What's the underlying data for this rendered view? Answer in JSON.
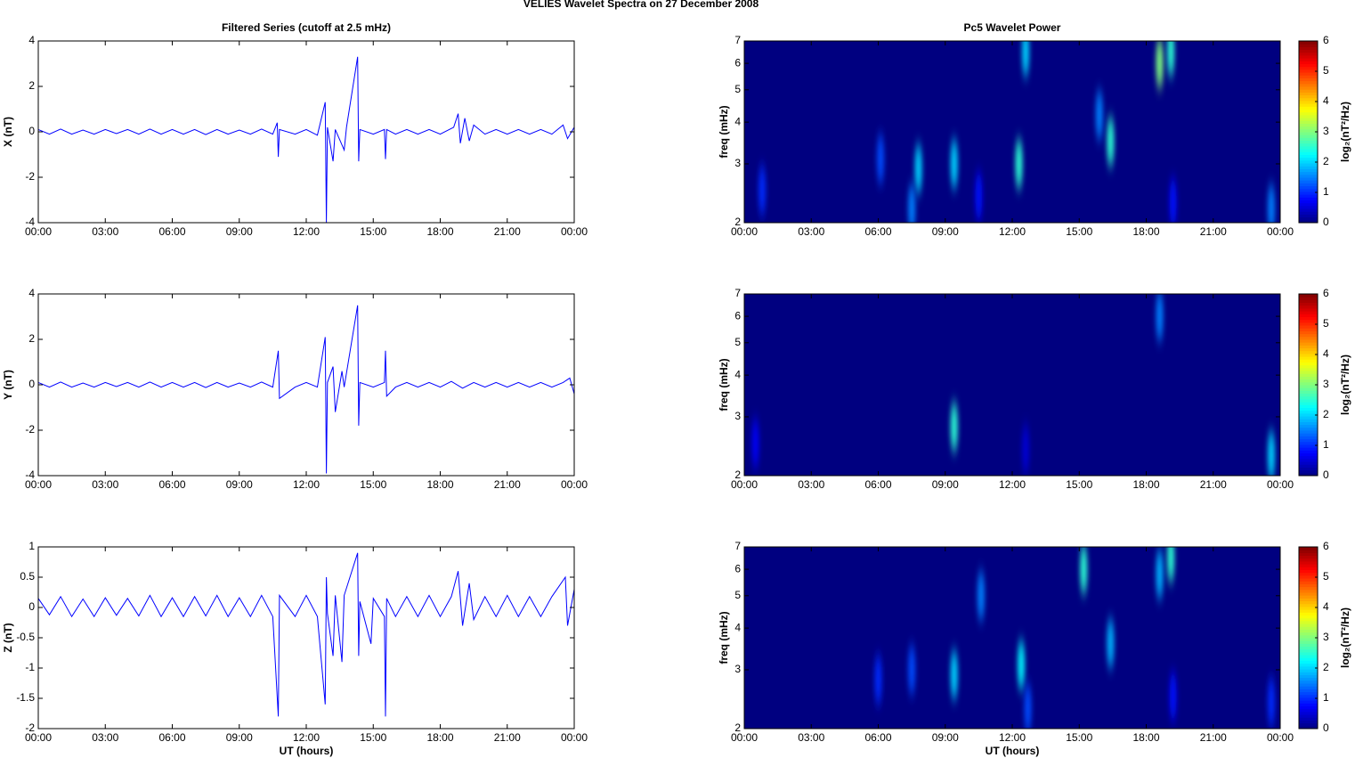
{
  "title": "VELIES Wavelet Spectra on 27 December  2008",
  "chart_data": [
    {
      "type": "line",
      "title": "Filtered Series (cutoff at 2.5 mHz)",
      "ylabel": "X (nT)",
      "x": [
        0,
        0.5,
        1,
        1.5,
        2,
        2.5,
        3,
        3.5,
        4,
        4.5,
        5,
        5.5,
        6,
        6.5,
        7,
        7.5,
        8,
        8.5,
        9,
        9.5,
        10,
        10.5,
        10.7,
        10.75,
        10.8,
        11.5,
        12,
        12.5,
        12.85,
        12.9,
        12.95,
        13.2,
        13.3,
        13.7,
        13.8,
        14.3,
        14.35,
        14.4,
        15,
        15.5,
        15.55,
        15.6,
        16,
        16.5,
        17,
        17.5,
        18,
        18.6,
        18.8,
        18.9,
        19.1,
        19.3,
        19.5,
        20,
        20.5,
        21,
        21.5,
        22,
        22.5,
        23,
        23.5,
        23.7,
        24
      ],
      "series": [
        {
          "color": "#0000ff",
          "values": [
            0.1,
            -0.1,
            0.12,
            -0.1,
            0.08,
            -0.1,
            0.1,
            -0.08,
            0.1,
            -0.1,
            0.12,
            -0.1,
            0.1,
            -0.1,
            0.1,
            -0.12,
            0.1,
            -0.1,
            0.08,
            -0.1,
            0.12,
            -0.1,
            0.4,
            -1.1,
            0.1,
            -0.1,
            0.1,
            -0.15,
            1.3,
            -4,
            0.2,
            -1.3,
            0.1,
            -0.8,
            0.2,
            3.3,
            -1.3,
            0.1,
            -0.1,
            0.1,
            -1.2,
            0.1,
            -0.1,
            0.1,
            -0.1,
            0.1,
            -0.1,
            0.2,
            0.8,
            -0.5,
            0.6,
            -0.4,
            0.3,
            -0.1,
            0.1,
            -0.1,
            0.1,
            -0.1,
            0.1,
            -0.1,
            0.3,
            -0.3,
            0.2
          ]
        }
      ],
      "xlim": [
        0,
        24
      ],
      "xticks": [
        {
          "value": 0,
          "label": "00:00"
        },
        {
          "value": 3,
          "label": "03:00"
        },
        {
          "value": 6,
          "label": "06:00"
        },
        {
          "value": 9,
          "label": "09:00"
        },
        {
          "value": 12,
          "label": "12:00"
        },
        {
          "value": 15,
          "label": "15:00"
        },
        {
          "value": 18,
          "label": "18:00"
        },
        {
          "value": 21,
          "label": "21:00"
        },
        {
          "value": 24,
          "label": "00:00"
        }
      ],
      "ylim": [
        -4,
        4
      ],
      "yticks": [
        -4,
        -2,
        0,
        2,
        4
      ]
    },
    {
      "type": "heatmap",
      "title": "Pc5 Wavelet Power",
      "ylabel": "freq (mHz)",
      "log_y": true,
      "colormap": "jet",
      "x": [
        0.8,
        6.1,
        7.8,
        7.5,
        9.4,
        10.5,
        12.3,
        12.6,
        16.4,
        15.9,
        18.6,
        19.1,
        23.6,
        19.2
      ],
      "y": [
        2.5,
        3.1,
        2.9,
        2.2,
        3,
        2.4,
        3,
        6.5,
        3.5,
        4.2,
        6,
        6.5,
        2.2,
        2.3
      ],
      "values": [
        1,
        1.2,
        2,
        1.5,
        2,
        0.8,
        2.5,
        2,
        2.5,
        1.5,
        3,
        2.5,
        1.5,
        0.8
      ],
      "xlim": [
        0,
        24
      ],
      "xticks": [
        {
          "value": 0,
          "label": "00:00"
        },
        {
          "value": 3,
          "label": "03:00"
        },
        {
          "value": 6,
          "label": "06:00"
        },
        {
          "value": 9,
          "label": "09:00"
        },
        {
          "value": 12,
          "label": "12:00"
        },
        {
          "value": 15,
          "label": "15:00"
        },
        {
          "value": 18,
          "label": "18:00"
        },
        {
          "value": 21,
          "label": "21:00"
        },
        {
          "value": 24,
          "label": "00:00"
        }
      ],
      "ylim": [
        2,
        7
      ],
      "yticks": [
        2,
        3,
        4,
        5,
        6,
        7
      ],
      "clim": [
        0,
        6
      ],
      "cticks": [
        0,
        1,
        2,
        3,
        4,
        5,
        6
      ],
      "clabel": "log₂(nT²/Hz)"
    },
    {
      "type": "line",
      "ylabel": "Y (nT)",
      "x": [
        0,
        0.5,
        1,
        1.5,
        2,
        2.5,
        3,
        3.5,
        4,
        4.5,
        5,
        5.5,
        6,
        6.5,
        7,
        7.5,
        8,
        8.5,
        9,
        9.5,
        10,
        10.5,
        10.75,
        10.8,
        11.5,
        12,
        12.5,
        12.85,
        12.9,
        12.95,
        13.2,
        13.3,
        13.6,
        13.7,
        14.3,
        14.35,
        14.4,
        15,
        15.5,
        15.55,
        15.6,
        16,
        16.5,
        17,
        17.5,
        18,
        18.5,
        19,
        19.5,
        20,
        20.5,
        21,
        21.5,
        22,
        22.5,
        23,
        23.5,
        23.8,
        24
      ],
      "series": [
        {
          "color": "#0000ff",
          "values": [
            0.1,
            -0.1,
            0.12,
            -0.1,
            0.08,
            -0.1,
            0.1,
            -0.08,
            0.1,
            -0.1,
            0.12,
            -0.1,
            0.1,
            -0.1,
            0.1,
            -0.12,
            0.1,
            -0.1,
            0.08,
            -0.1,
            0.12,
            -0.1,
            1.5,
            -0.6,
            -0.1,
            0.1,
            -0.1,
            2.1,
            -3.9,
            0.1,
            0.8,
            -1.2,
            0.6,
            -0.1,
            3.5,
            -1.8,
            0.1,
            -0.1,
            0.1,
            1.5,
            -0.5,
            -0.1,
            0.1,
            -0.1,
            0.1,
            -0.1,
            0.15,
            -0.15,
            0.1,
            -0.1,
            0.1,
            -0.1,
            0.1,
            -0.1,
            0.1,
            -0.1,
            0.1,
            0.3,
            -0.4
          ]
        }
      ],
      "xlim": [
        0,
        24
      ],
      "xticks": [
        {
          "value": 0,
          "label": "00:00"
        },
        {
          "value": 3,
          "label": "03:00"
        },
        {
          "value": 6,
          "label": "06:00"
        },
        {
          "value": 9,
          "label": "09:00"
        },
        {
          "value": 12,
          "label": "12:00"
        },
        {
          "value": 15,
          "label": "15:00"
        },
        {
          "value": 18,
          "label": "18:00"
        },
        {
          "value": 21,
          "label": "21:00"
        },
        {
          "value": 24,
          "label": "00:00"
        }
      ],
      "ylim": [
        -4,
        4
      ],
      "yticks": [
        -4,
        -2,
        0,
        2,
        4
      ]
    },
    {
      "type": "heatmap",
      "ylabel": "freq (mHz)",
      "log_y": true,
      "colormap": "jet",
      "x": [
        0.5,
        9.4,
        18.6,
        23.6,
        12.6
      ],
      "y": [
        2.5,
        2.8,
        6,
        2.3,
        2.4
      ],
      "values": [
        0.7,
        2.5,
        1.5,
        2,
        0.5
      ],
      "xlim": [
        0,
        24
      ],
      "xticks": [
        {
          "value": 0,
          "label": "00:00"
        },
        {
          "value": 3,
          "label": "03:00"
        },
        {
          "value": 6,
          "label": "06:00"
        },
        {
          "value": 9,
          "label": "09:00"
        },
        {
          "value": 12,
          "label": "12:00"
        },
        {
          "value": 15,
          "label": "15:00"
        },
        {
          "value": 18,
          "label": "18:00"
        },
        {
          "value": 21,
          "label": "21:00"
        },
        {
          "value": 24,
          "label": "00:00"
        }
      ],
      "ylim": [
        2,
        7
      ],
      "yticks": [
        2,
        3,
        4,
        5,
        6,
        7
      ],
      "clim": [
        0,
        6
      ],
      "cticks": [
        0,
        1,
        2,
        3,
        4,
        5,
        6
      ],
      "clabel": "log₂(nT²/Hz)"
    },
    {
      "type": "line",
      "ylabel": "Z (nT)",
      "xlabel": "UT (hours)",
      "x": [
        0,
        0.5,
        1,
        1.5,
        2,
        2.5,
        3,
        3.5,
        4,
        4.5,
        5,
        5.5,
        6,
        6.5,
        7,
        7.5,
        8,
        8.5,
        9,
        9.5,
        10,
        10.5,
        10.75,
        10.8,
        11.5,
        12,
        12.5,
        12.85,
        12.9,
        12.95,
        13.2,
        13.3,
        13.6,
        13.7,
        14.3,
        14.35,
        14.4,
        14.9,
        15,
        15.5,
        15.55,
        15.6,
        16,
        16.5,
        17,
        17.5,
        18,
        18.5,
        18.8,
        19,
        19.3,
        19.5,
        20,
        20.5,
        21,
        21.5,
        22,
        22.5,
        23,
        23.6,
        23.7,
        24
      ],
      "series": [
        {
          "color": "#0000ff",
          "values": [
            0.15,
            -0.12,
            0.18,
            -0.15,
            0.14,
            -0.15,
            0.16,
            -0.13,
            0.15,
            -0.14,
            0.2,
            -0.15,
            0.16,
            -0.15,
            0.18,
            -0.14,
            0.2,
            -0.15,
            0.16,
            -0.15,
            0.2,
            -0.15,
            -1.8,
            0.2,
            -0.15,
            0.2,
            -0.15,
            -1.6,
            0.5,
            -0.1,
            -0.8,
            0.2,
            -0.9,
            0.2,
            0.9,
            -0.8,
            0.1,
            -0.6,
            0.15,
            -0.15,
            -1.8,
            0.15,
            -0.15,
            0.18,
            -0.15,
            0.2,
            -0.15,
            0.18,
            0.6,
            -0.3,
            0.4,
            -0.2,
            0.18,
            -0.15,
            0.2,
            -0.15,
            0.18,
            -0.15,
            0.18,
            0.5,
            -0.3,
            0.3
          ]
        }
      ],
      "xlim": [
        0,
        24
      ],
      "xticks": [
        {
          "value": 0,
          "label": "00:00"
        },
        {
          "value": 3,
          "label": "03:00"
        },
        {
          "value": 6,
          "label": "06:00"
        },
        {
          "value": 9,
          "label": "09:00"
        },
        {
          "value": 12,
          "label": "12:00"
        },
        {
          "value": 15,
          "label": "15:00"
        },
        {
          "value": 18,
          "label": "18:00"
        },
        {
          "value": 21,
          "label": "21:00"
        },
        {
          "value": 24,
          "label": "00:00"
        }
      ],
      "ylim": [
        -2,
        1
      ],
      "yticks": [
        -2,
        -1.5,
        -1,
        -0.5,
        0,
        0.5,
        1
      ]
    },
    {
      "type": "heatmap",
      "ylabel": "freq (mHz)",
      "xlabel": "UT (hours)",
      "log_y": true,
      "colormap": "jet",
      "x": [
        6,
        7.5,
        9.4,
        10.6,
        12.4,
        12.7,
        15.2,
        16.4,
        18.6,
        19.1,
        23.6,
        19.2
      ],
      "y": [
        2.8,
        3,
        2.9,
        5,
        3.1,
        2.3,
        6,
        3.6,
        5.8,
        6.5,
        2.4,
        2.5
      ],
      "values": [
        1,
        1.2,
        2,
        1.5,
        2.2,
        1.2,
        2.5,
        1.8,
        1.8,
        2.5,
        1,
        0.8
      ],
      "xlim": [
        0,
        24
      ],
      "xticks": [
        {
          "value": 0,
          "label": "00:00"
        },
        {
          "value": 3,
          "label": "03:00"
        },
        {
          "value": 6,
          "label": "06:00"
        },
        {
          "value": 9,
          "label": "09:00"
        },
        {
          "value": 12,
          "label": "12:00"
        },
        {
          "value": 15,
          "label": "15:00"
        },
        {
          "value": 18,
          "label": "18:00"
        },
        {
          "value": 21,
          "label": "21:00"
        },
        {
          "value": 24,
          "label": "00:00"
        }
      ],
      "ylim": [
        2,
        7
      ],
      "yticks": [
        2,
        3,
        4,
        5,
        6,
        7
      ],
      "clim": [
        0,
        6
      ],
      "cticks": [
        0,
        1,
        2,
        3,
        4,
        5,
        6
      ],
      "clabel": "log₂(nT²/Hz)"
    }
  ]
}
